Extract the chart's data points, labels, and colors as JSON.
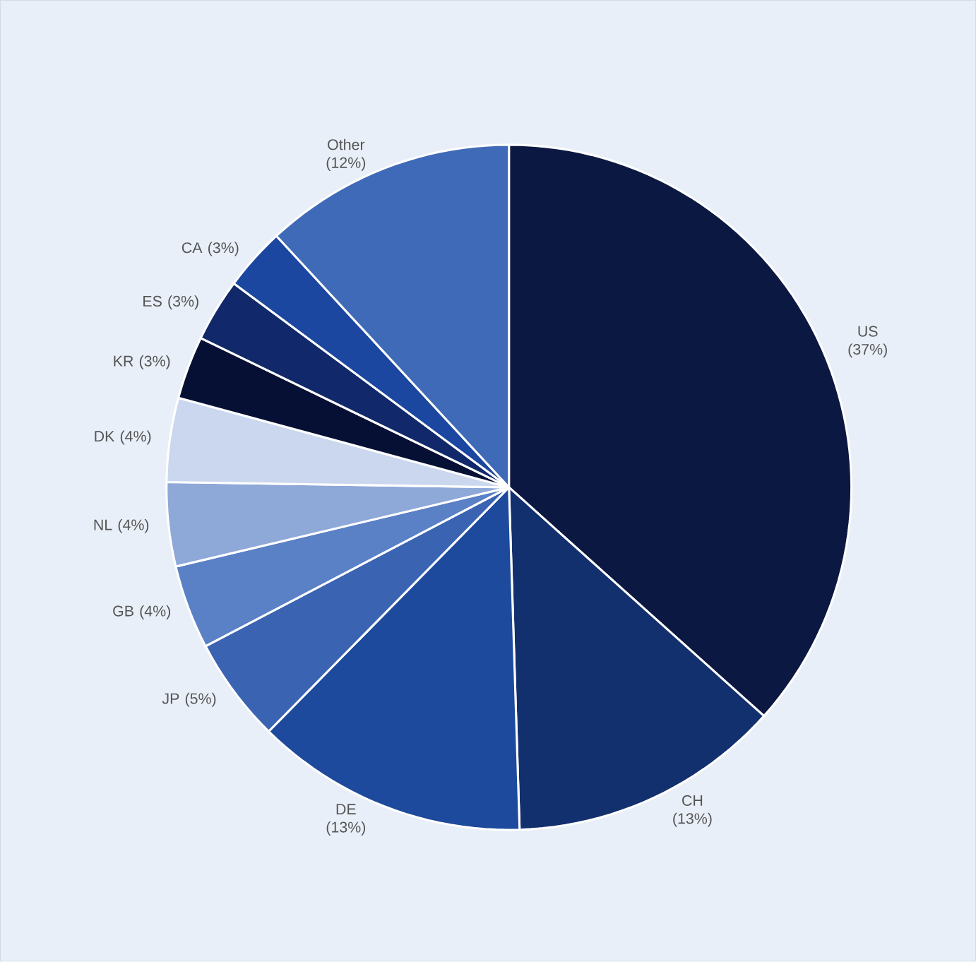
{
  "chart_data": {
    "type": "pie",
    "categories": [
      "US (37%)",
      "CH (13%)",
      "DE (13%)",
      "JP (5%)",
      "GB (4%)",
      "NL (4%)",
      "DK (4%)",
      "KR (3%)",
      "ES (3%)",
      "CA (3%)",
      "Other (12%)"
    ],
    "values": [
      37,
      13,
      13,
      5,
      4,
      4,
      4,
      3,
      3,
      3,
      12
    ],
    "colors": [
      "#0b1842",
      "#13306e",
      "#1d4a9c",
      "#3a64b2",
      "#5a80c6",
      "#8ea8d8",
      "#cad7ee",
      "#061034",
      "#11296a",
      "#1b47a0",
      "#3f6ab8"
    ]
  }
}
